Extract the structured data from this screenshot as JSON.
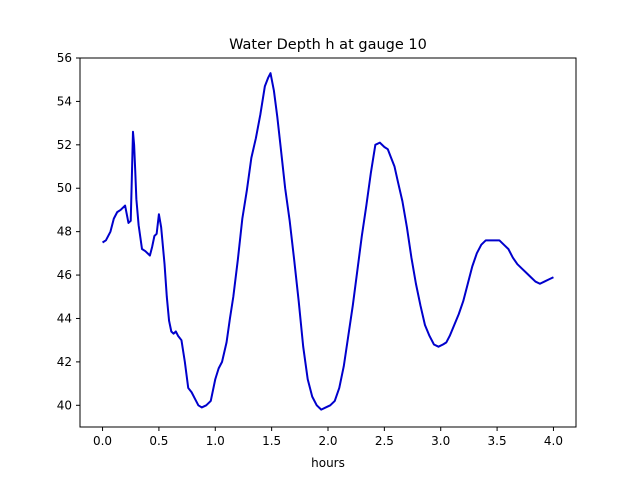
{
  "chart_data": {
    "type": "line",
    "title": "Water Depth h at gauge 10",
    "xlabel": "hours",
    "ylabel": "",
    "xlim": [
      -0.2,
      4.2
    ],
    "ylim": [
      39.0,
      56.0
    ],
    "xticks": [
      0.0,
      0.5,
      1.0,
      1.5,
      2.0,
      2.5,
      3.0,
      3.5,
      4.0
    ],
    "xtick_labels": [
      "0.0",
      "0.5",
      "1.0",
      "1.5",
      "2.0",
      "2.5",
      "3.0",
      "3.5",
      "4.0"
    ],
    "yticks": [
      40,
      42,
      44,
      46,
      48,
      50,
      52,
      54,
      56
    ],
    "ytick_labels": [
      "40",
      "42",
      "44",
      "46",
      "48",
      "50",
      "52",
      "54",
      "56"
    ],
    "grid": false,
    "legend": "none",
    "series": [
      {
        "color": "#0000cc",
        "x": [
          0.0,
          0.03,
          0.07,
          0.1,
          0.13,
          0.16,
          0.2,
          0.23,
          0.25,
          0.26,
          0.27,
          0.28,
          0.29,
          0.3,
          0.32,
          0.35,
          0.38,
          0.42,
          0.44,
          0.46,
          0.48,
          0.5,
          0.52,
          0.55,
          0.57,
          0.59,
          0.61,
          0.63,
          0.65,
          0.67,
          0.7,
          0.73,
          0.76,
          0.79,
          0.82,
          0.85,
          0.88,
          0.92,
          0.96,
          1.0,
          1.03,
          1.06,
          1.1,
          1.13,
          1.16,
          1.2,
          1.24,
          1.28,
          1.32,
          1.36,
          1.4,
          1.44,
          1.47,
          1.49,
          1.52,
          1.55,
          1.58,
          1.62,
          1.66,
          1.7,
          1.74,
          1.78,
          1.82,
          1.86,
          1.9,
          1.94,
          1.98,
          2.02,
          2.06,
          2.1,
          2.14,
          2.18,
          2.22,
          2.26,
          2.3,
          2.34,
          2.38,
          2.42,
          2.46,
          2.5,
          2.53,
          2.56,
          2.59,
          2.62,
          2.66,
          2.7,
          2.74,
          2.78,
          2.82,
          2.86,
          2.9,
          2.94,
          2.98,
          3.02,
          3.05,
          3.08,
          3.12,
          3.16,
          3.2,
          3.24,
          3.28,
          3.32,
          3.36,
          3.4,
          3.44,
          3.48,
          3.52,
          3.56,
          3.6,
          3.64,
          3.68,
          3.72,
          3.76,
          3.8,
          3.84,
          3.88,
          3.92,
          3.96,
          4.0
        ],
        "y": [
          47.5,
          47.6,
          48.0,
          48.6,
          48.9,
          49.0,
          49.2,
          48.4,
          48.5,
          50.5,
          52.6,
          52.0,
          50.8,
          49.5,
          48.3,
          47.2,
          47.1,
          46.9,
          47.3,
          47.8,
          47.9,
          48.8,
          48.2,
          46.5,
          45.0,
          43.9,
          43.4,
          43.3,
          43.4,
          43.2,
          43.0,
          42.0,
          40.8,
          40.6,
          40.3,
          40.0,
          39.9,
          40.0,
          40.2,
          41.2,
          41.7,
          42.0,
          42.9,
          44.0,
          45.0,
          46.7,
          48.6,
          49.9,
          51.4,
          52.3,
          53.4,
          54.7,
          55.1,
          55.3,
          54.5,
          53.3,
          51.9,
          50.0,
          48.5,
          46.7,
          44.8,
          42.7,
          41.2,
          40.4,
          40.0,
          39.8,
          39.9,
          40.0,
          40.2,
          40.8,
          41.8,
          43.2,
          44.6,
          46.2,
          47.8,
          49.2,
          50.7,
          52.0,
          52.1,
          51.9,
          51.8,
          51.4,
          51.0,
          50.3,
          49.4,
          48.2,
          46.8,
          45.6,
          44.6,
          43.7,
          43.2,
          42.8,
          42.7,
          42.8,
          42.9,
          43.2,
          43.7,
          44.2,
          44.8,
          45.6,
          46.4,
          47.0,
          47.4,
          47.6,
          47.6,
          47.6,
          47.6,
          47.4,
          47.2,
          46.8,
          46.5,
          46.3,
          46.1,
          45.9,
          45.7,
          45.6,
          45.7,
          45.8,
          45.9
        ]
      }
    ]
  }
}
